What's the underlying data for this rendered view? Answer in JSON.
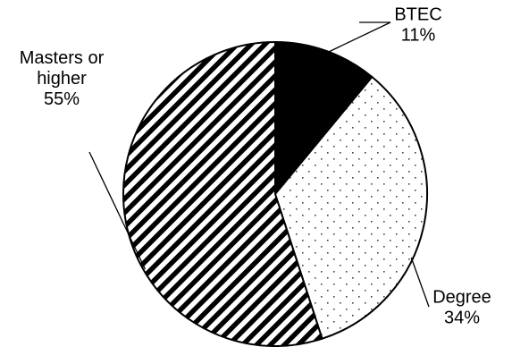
{
  "chart_data": {
    "type": "pie",
    "title": "",
    "start_angle_deg": 0,
    "direction": "clockwise",
    "legend": "none",
    "slices": [
      {
        "label_lines": [
          "BTEC"
        ],
        "value": 11,
        "value_label": "11%",
        "pattern": "solid",
        "color": "#000000"
      },
      {
        "label_lines": [
          "Degree"
        ],
        "value": 34,
        "value_label": "34%",
        "pattern": "dots",
        "color": "#000000"
      },
      {
        "label_lines": [
          "Masters or",
          "higher"
        ],
        "value": 55,
        "value_label": "55%",
        "pattern": "diagonal-stripes",
        "color": "#000000"
      }
    ]
  }
}
